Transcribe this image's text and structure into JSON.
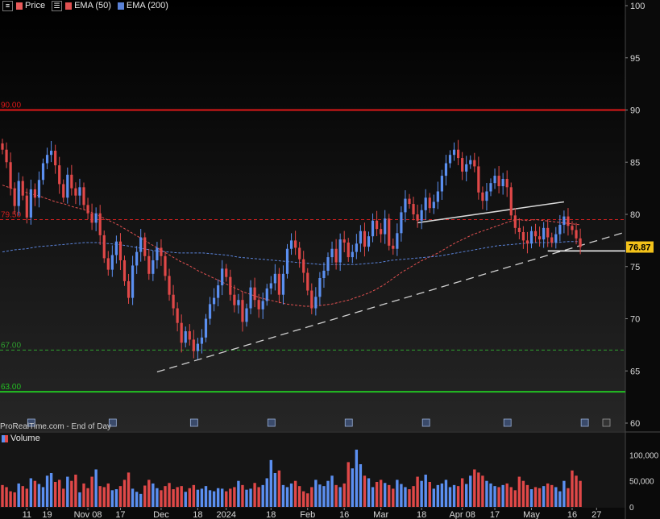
{
  "header": {
    "items": [
      {
        "label": "Price",
        "color": "#e85a5a"
      },
      {
        "label": "EMA (50)",
        "color": "#e05050"
      },
      {
        "label": "EMA (200)",
        "color": "#5a82d8"
      }
    ]
  },
  "watermark": "ProRealTime.com - End of Day",
  "volume_label": "Volume",
  "colors": {
    "up": "#5b8ff0",
    "down": "#e04848",
    "ema50": "#e05050",
    "ema200": "#5a82d8",
    "grid": "#2a2a2a"
  },
  "chart_data": {
    "type": "candlestick",
    "price_ylim": [
      59.5,
      100.5
    ],
    "price_ticks": [
      100,
      95,
      90,
      85,
      80,
      75,
      70,
      65,
      60
    ],
    "volume_ticks": [
      {
        "v": 100000,
        "t": "100,000"
      },
      {
        "v": 50000,
        "t": "50,000"
      },
      {
        "v": 0,
        "t": "0"
      }
    ],
    "volume_ylim": [
      0,
      130000
    ],
    "x_ticks": [
      {
        "i": 6,
        "t": "11"
      },
      {
        "i": 11,
        "t": "19"
      },
      {
        "i": 21,
        "t": "Nov 08"
      },
      {
        "i": 29,
        "t": "17"
      },
      {
        "i": 39,
        "t": "Dec"
      },
      {
        "i": 48,
        "t": "18"
      },
      {
        "i": 55,
        "t": "2024"
      },
      {
        "i": 66,
        "t": "18"
      },
      {
        "i": 75,
        "t": "Feb"
      },
      {
        "i": 84,
        "t": "16"
      },
      {
        "i": 93,
        "t": "Mar"
      },
      {
        "i": 103,
        "t": "18"
      },
      {
        "i": 113,
        "t": "Apr 08"
      },
      {
        "i": 121,
        "t": "17"
      },
      {
        "i": 130,
        "t": "May"
      },
      {
        "i": 140,
        "t": "16"
      },
      {
        "i": 146,
        "t": "27"
      }
    ],
    "levels": [
      {
        "value": 90,
        "label": "90.00",
        "color": "#e01818",
        "style": "solid"
      },
      {
        "value": 79.5,
        "label": "79.50",
        "color": "#d02020",
        "style": "dashed"
      },
      {
        "value": 67,
        "label": "67.00",
        "color": "#2ea02e",
        "style": "dashed"
      },
      {
        "value": 63,
        "label": "63.00",
        "color": "#22c022",
        "style": "solid"
      }
    ],
    "last_price": "76.87",
    "last_value": 76.87,
    "closes": [
      86.2,
      85.0,
      82.5,
      80.8,
      83.2,
      81.8,
      79.7,
      82.4,
      81.6,
      83.3,
      84.9,
      85.7,
      86.1,
      84.7,
      82.9,
      81.6,
      83.8,
      82.5,
      81.8,
      82.6,
      80.9,
      80.1,
      79.2,
      80.1,
      78.0,
      75.8,
      74.7,
      76.1,
      77.4,
      75.6,
      73.6,
      72.0,
      75.1,
      76.4,
      77.8,
      76.0,
      74.3,
      75.6,
      76.8,
      76.0,
      74.1,
      72.3,
      71.0,
      69.6,
      67.7,
      68.8,
      68.0,
      66.9,
      67.6,
      68.2,
      70.0,
      71.4,
      72.0,
      73.2,
      74.8,
      74.0,
      72.3,
      71.3,
      71.8,
      69.7,
      71.0,
      73.0,
      71.8,
      70.9,
      71.7,
      72.9,
      73.4,
      74.3,
      72.3,
      74.3,
      76.7,
      77.5,
      76.8,
      75.7,
      74.4,
      72.7,
      71.0,
      72.1,
      73.9,
      74.6,
      75.9,
      76.7,
      75.4,
      77.6,
      77.3,
      75.9,
      76.4,
      77.2,
      78.4,
      76.9,
      77.9,
      79.4,
      78.6,
      78.1,
      79.6,
      77.0,
      76.7,
      78.2,
      80.2,
      81.5,
      81.0,
      80.0,
      79.4,
      80.4,
      81.6,
      80.6,
      81.2,
      82.2,
      83.7,
      84.9,
      85.7,
      86.2,
      85.4,
      84.1,
      84.8,
      85.2,
      84.6,
      82.1,
      81.3,
      82.2,
      83.0,
      83.7,
      82.7,
      83.4,
      82.6,
      79.9,
      78.7,
      78.3,
      77.5,
      77.2,
      78.4,
      77.9,
      77.6,
      78.7,
      77.8,
      77.3,
      78.1,
      79.0,
      79.8,
      78.9,
      78.5,
      77.7,
      76.87
    ],
    "volumes": [
      42000,
      38000,
      30000,
      28000,
      45000,
      40000,
      35000,
      55000,
      50000,
      44000,
      38000,
      60000,
      65000,
      48000,
      52000,
      35000,
      58000,
      50000,
      62000,
      28000,
      45000,
      36000,
      58000,
      72000,
      40000,
      38000,
      45000,
      32000,
      34000,
      40000,
      52000,
      66000,
      35000,
      29000,
      25000,
      41000,
      52000,
      45000,
      36000,
      32000,
      40000,
      46000,
      34000,
      38000,
      40000,
      29000,
      36000,
      42000,
      33000,
      35000,
      40000,
      32000,
      30000,
      36000,
      35000,
      30000,
      35000,
      38000,
      50000,
      42000,
      33000,
      35000,
      46000,
      38000,
      42000,
      55000,
      90000,
      65000,
      70000,
      42000,
      38000,
      45000,
      50000,
      40000,
      30000,
      26000,
      38000,
      52000,
      43000,
      40000,
      50000,
      60000,
      42000,
      38000,
      45000,
      86000,
      74000,
      110000,
      82000,
      60000,
      55000,
      38000,
      48000,
      52000,
      46000,
      42000,
      35000,
      52000,
      44000,
      38000,
      34000,
      40000,
      58000,
      50000,
      62000,
      48000,
      35000,
      42000,
      45000,
      52000,
      38000,
      42000,
      40000,
      55000,
      44000,
      60000,
      72000,
      66000,
      60000,
      50000,
      45000,
      40000,
      38000,
      42000,
      45000,
      38000,
      32000,
      58000,
      50000,
      42000,
      34000,
      38000,
      36000,
      40000,
      45000,
      42000,
      38000,
      30000,
      50000,
      36000,
      70000,
      60000,
      50000,
      55000,
      65000,
      60000
    ],
    "ema50": [
      82.8,
      82.5,
      82.3,
      82.0,
      81.8,
      81.5,
      81.2,
      81.0,
      80.7,
      80.5,
      80.2,
      79.8,
      79.4,
      79.0,
      78.5,
      78.0,
      77.5,
      77.0,
      76.5,
      76.0,
      75.5,
      75.1,
      74.6,
      74.2,
      73.8,
      73.4,
      73.0,
      72.6,
      72.3,
      72.0,
      71.8,
      71.6,
      71.4,
      71.3,
      71.2,
      71.2,
      71.3,
      71.4,
      71.6,
      71.8,
      72.1,
      72.4,
      72.8,
      73.3,
      73.9,
      74.5,
      75.0,
      75.5,
      75.9,
      76.3,
      76.8,
      77.3,
      77.7,
      78.1,
      78.4,
      78.7,
      79.0,
      79.3,
      79.5,
      79.4,
      79.5,
      79.4,
      79.3,
      79.2,
      79.1,
      79.0
    ],
    "ema50_start": 80,
    "ema200": [
      76.4,
      76.6,
      76.7,
      76.9,
      77.0,
      77.1,
      77.2,
      77.3,
      77.3,
      77.2,
      77.1,
      76.9,
      76.7,
      76.5,
      76.4,
      76.3,
      76.3,
      76.3,
      76.2,
      76.1,
      75.9,
      75.8,
      75.7,
      75.6,
      75.5,
      75.4,
      75.3,
      75.2,
      75.2,
      75.2,
      75.2,
      75.3,
      75.4,
      75.6,
      75.7,
      75.8,
      75.9,
      76.0,
      76.2,
      76.4,
      76.6,
      76.8,
      77.0,
      77.1,
      77.2,
      77.3,
      77.3,
      77.3,
      77.4,
      77.4
    ],
    "ema200_start": 0
  }
}
